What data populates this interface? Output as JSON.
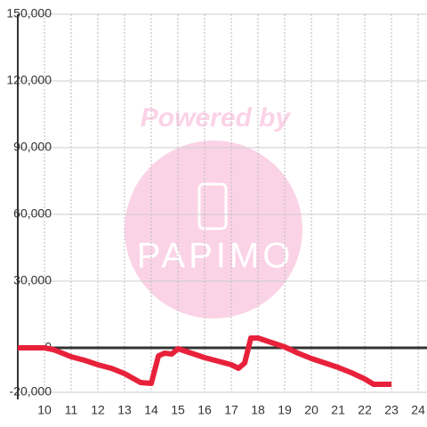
{
  "chart_data": {
    "type": "line",
    "x": [
      9,
      10,
      10.33,
      10.67,
      11,
      11.5,
      12,
      12.5,
      13,
      13.6,
      14,
      14.27,
      14.5,
      14.77,
      15,
      15.5,
      16,
      16.5,
      17,
      17.27,
      17.5,
      17.73,
      18,
      18.5,
      19,
      19.5,
      20,
      20.5,
      21,
      21.5,
      22,
      22.33,
      23
    ],
    "series": [
      {
        "color": "#e8213b",
        "values": [
          0,
          0,
          -800,
          -2400,
          -4000,
          -5600,
          -7600,
          -9200,
          -11600,
          -15600,
          -16000,
          -3600,
          -2400,
          -2800,
          -400,
          -2400,
          -4400,
          -6000,
          -7600,
          -9200,
          -6800,
          4400,
          4400,
          2400,
          400,
          -2400,
          -4800,
          -6800,
          -8800,
          -11200,
          -14000,
          -16400,
          -16400
        ]
      }
    ],
    "xlim": [
      9,
      24.33
    ],
    "xticks": [
      10,
      11,
      12,
      13,
      14,
      15,
      16,
      17,
      18,
      19,
      20,
      21,
      22,
      23,
      24
    ],
    "ylim": [
      -20000,
      150000
    ],
    "yticks": [
      {
        "value": -20000,
        "label": "-20,000"
      },
      0,
      {
        "value": 30000,
        "label": "30,000"
      },
      {
        "value": 60000,
        "label": "60,000"
      },
      {
        "value": 90000,
        "label": "90,000"
      },
      {
        "value": 120000,
        "label": "120,000"
      },
      {
        "value": 150000,
        "label": "150,000"
      }
    ],
    "grid": true,
    "watermark": {
      "top": "Powered by",
      "bottom": "PAPIMO"
    }
  }
}
